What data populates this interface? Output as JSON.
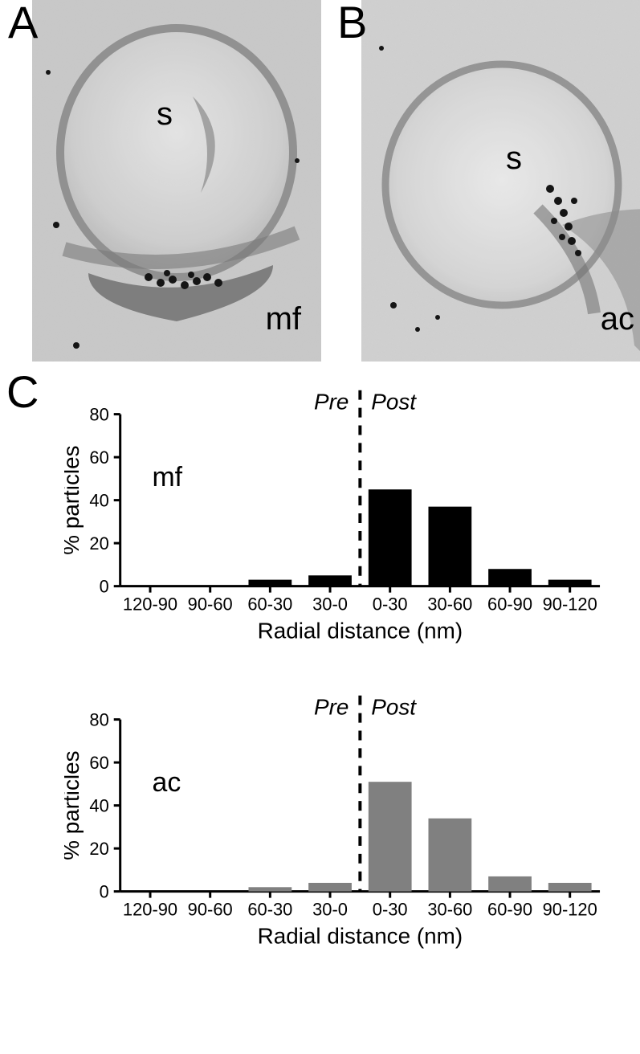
{
  "panels": {
    "A": {
      "label": "A",
      "overlay_s": "s",
      "overlay_region": "mf"
    },
    "B": {
      "label": "B",
      "overlay_s": "s",
      "overlay_region": "ac"
    },
    "C": {
      "label": "C"
    }
  },
  "chart_common": {
    "xlabel": "Radial distance (nm)",
    "ylabel": "% particles",
    "pre_label": "Pre",
    "post_label": "Post",
    "categories": [
      "120-90",
      "90-60",
      "60-30",
      "30-0",
      "0-30",
      "30-60",
      "60-90",
      "90-120"
    ],
    "ylim": [
      0,
      80
    ],
    "ytick_step": 20,
    "divider_after_index": 3,
    "axis_color": "#000000",
    "tick_fontsize": 22,
    "label_fontsize": 28,
    "inner_fontsize": 34,
    "bar_width_ratio": 0.72,
    "background_color": "#ffffff"
  },
  "chart_mf": {
    "inner_label": "mf",
    "bar_color": "#000000",
    "values": [
      0,
      0,
      3,
      5,
      45,
      37,
      8,
      3
    ]
  },
  "chart_ac": {
    "inner_label": "ac",
    "bar_color": "#808080",
    "values": [
      0,
      0,
      2,
      4,
      51,
      34,
      7,
      4
    ]
  },
  "micrograph_style": {
    "bg_tone": "#c8c8c8",
    "light_tone": "#e6e6e6",
    "dark_tone": "#7a7a7a",
    "particle": "#1a1a1a"
  }
}
